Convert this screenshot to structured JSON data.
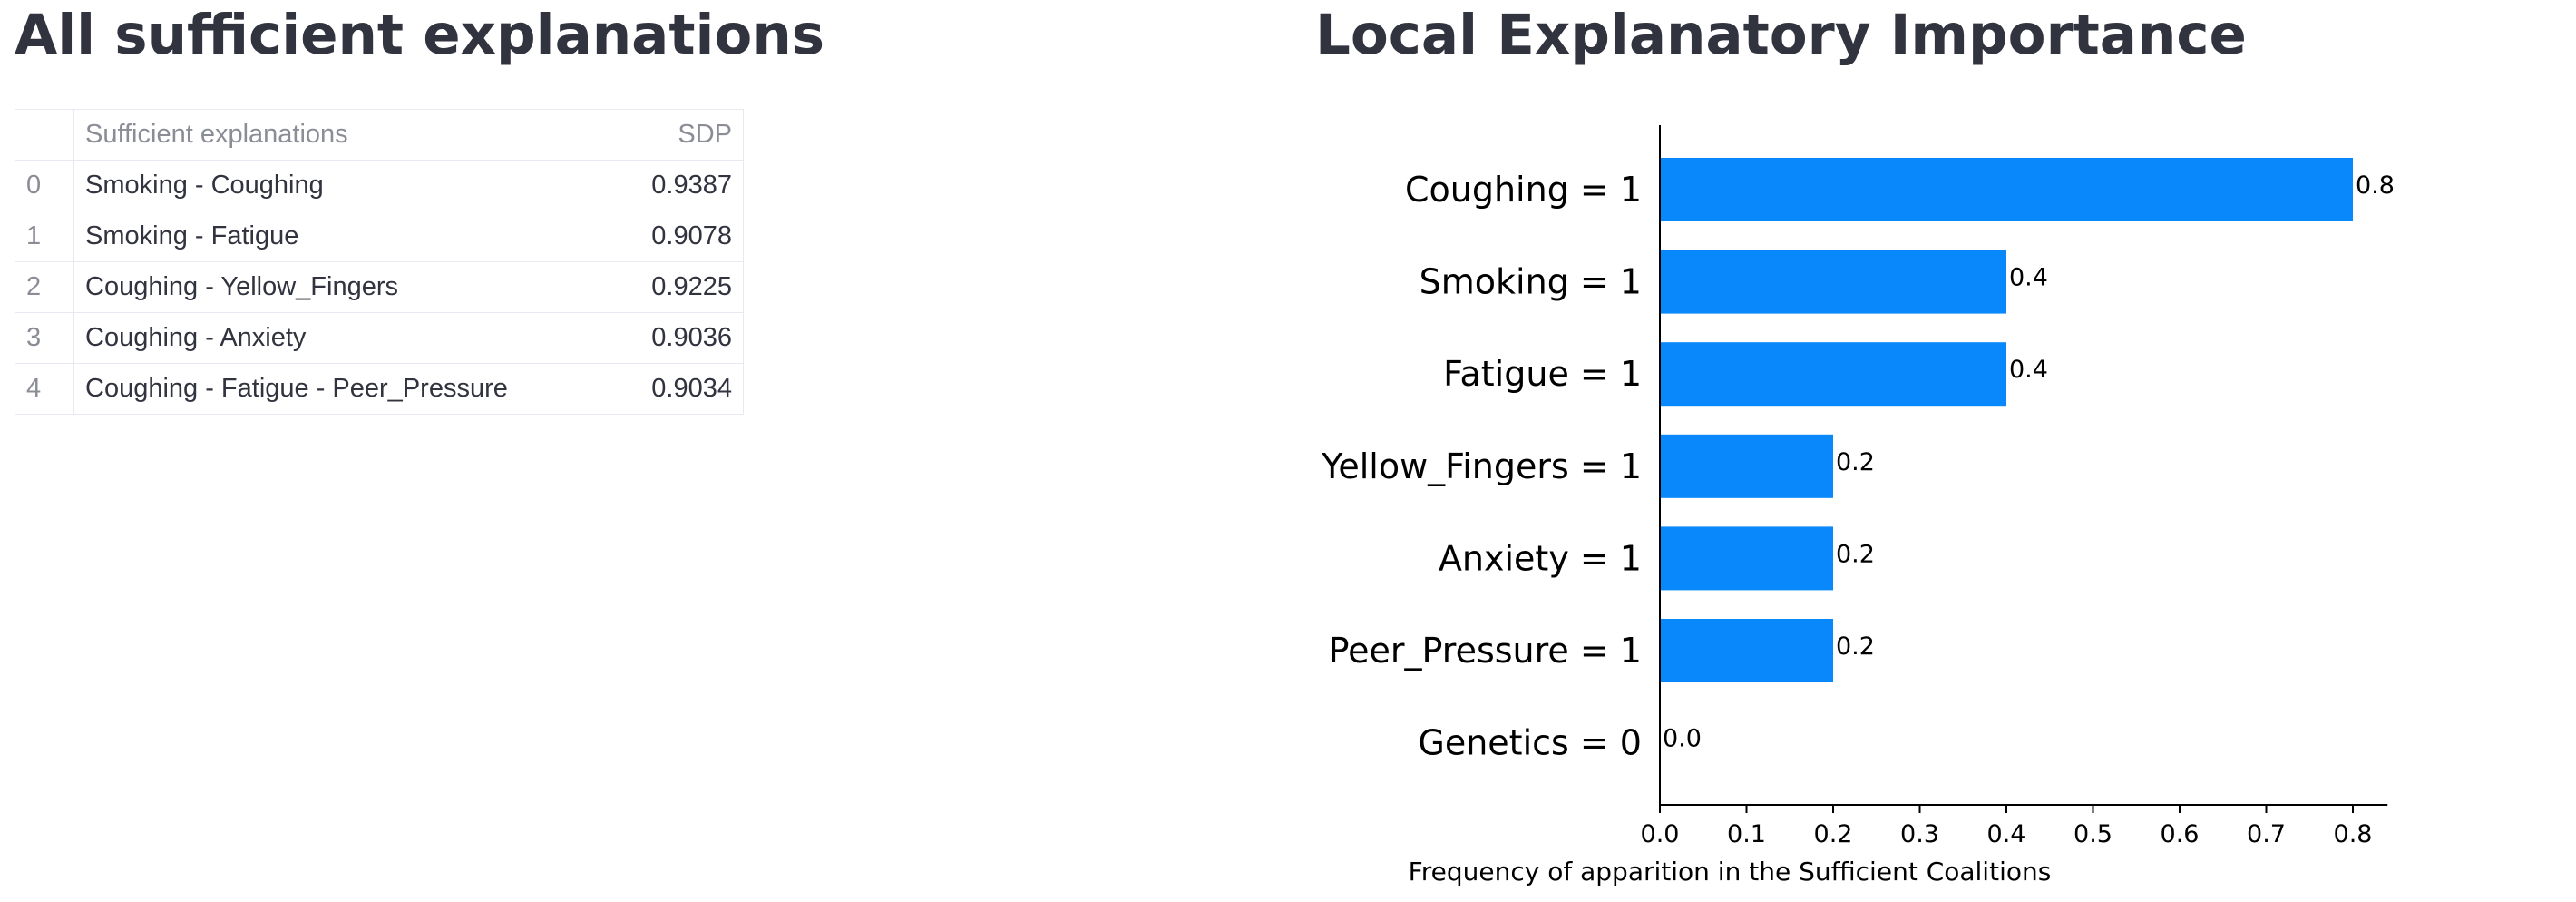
{
  "left": {
    "title": "All sufficient explanations",
    "table": {
      "columns": [
        "",
        "Sufficient explanations",
        "SDP"
      ],
      "rows": [
        {
          "index": "0",
          "explanation": "Smoking - Coughing",
          "sdp": "0.9387"
        },
        {
          "index": "1",
          "explanation": "Smoking - Fatigue",
          "sdp": "0.9078"
        },
        {
          "index": "2",
          "explanation": "Coughing - Yellow_Fingers",
          "sdp": "0.9225"
        },
        {
          "index": "3",
          "explanation": "Coughing - Anxiety",
          "sdp": "0.9036"
        },
        {
          "index": "4",
          "explanation": "Coughing - Fatigue - Peer_Pressure",
          "sdp": "0.9034"
        }
      ]
    }
  },
  "right": {
    "title": "Local Explanatory Importance"
  },
  "chart_data": {
    "type": "bar",
    "orientation": "horizontal",
    "categories": [
      "Coughing = 1",
      "Smoking = 1",
      "Fatigue = 1",
      "Yellow_Fingers = 1",
      "Anxiety = 1",
      "Peer_Pressure = 1",
      "Genetics = 0"
    ],
    "values": [
      0.8,
      0.4,
      0.4,
      0.2,
      0.2,
      0.2,
      0.0
    ],
    "value_labels": [
      "0.8",
      "0.4",
      "0.4",
      "0.2",
      "0.2",
      "0.2",
      "0.0"
    ],
    "xlabel": "Frequency of apparition in the Sufficient Coalitions",
    "xticks": [
      "0.0",
      "0.1",
      "0.2",
      "0.3",
      "0.4",
      "0.5",
      "0.6",
      "0.7",
      "0.8"
    ],
    "xlim": [
      0,
      0.84
    ],
    "bar_color": "#0988fc",
    "grid": false
  }
}
